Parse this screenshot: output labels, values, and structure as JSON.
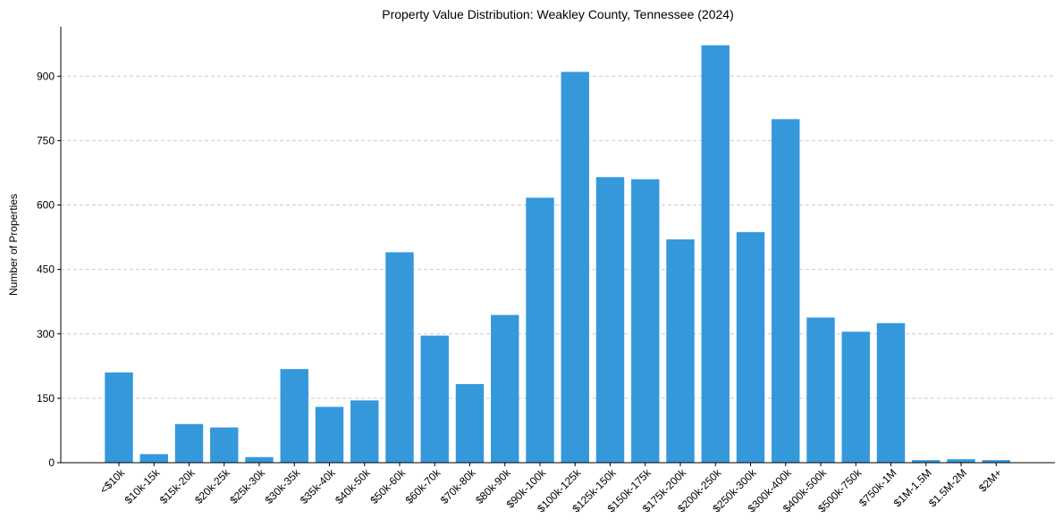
{
  "chart_data": {
    "type": "bar",
    "title": "Property Value Distribution: Weakley County, Tennessee (2024)",
    "xlabel": "",
    "ylabel": "Number of Properties",
    "ylim": [
      0,
      1015
    ],
    "yticks": [
      0,
      150,
      300,
      450,
      600,
      750,
      900
    ],
    "grid": "y-dashed",
    "bar_color": "#3498db",
    "grid_color": "#cccccc",
    "categories": [
      "<$10k",
      "$10k-15k",
      "$15k-20k",
      "$20k-25k",
      "$25k-30k",
      "$30k-35k",
      "$35k-40k",
      "$40k-50k",
      "$50k-60k",
      "$60k-70k",
      "$70k-80k",
      "$80k-90k",
      "$90k-100k",
      "$100k-125k",
      "$125k-150k",
      "$150k-175k",
      "$175k-200k",
      "$200k-250k",
      "$250k-300k",
      "$300k-400k",
      "$400k-500k",
      "$500k-750k",
      "$750k-1M",
      "$1M-1.5M",
      "$1.5M-2M",
      "$2M+"
    ],
    "values": [
      210,
      20,
      90,
      82,
      13,
      218,
      130,
      145,
      490,
      296,
      183,
      344,
      617,
      910,
      665,
      660,
      520,
      972,
      537,
      800,
      338,
      305,
      325,
      6,
      8,
      6
    ]
  }
}
